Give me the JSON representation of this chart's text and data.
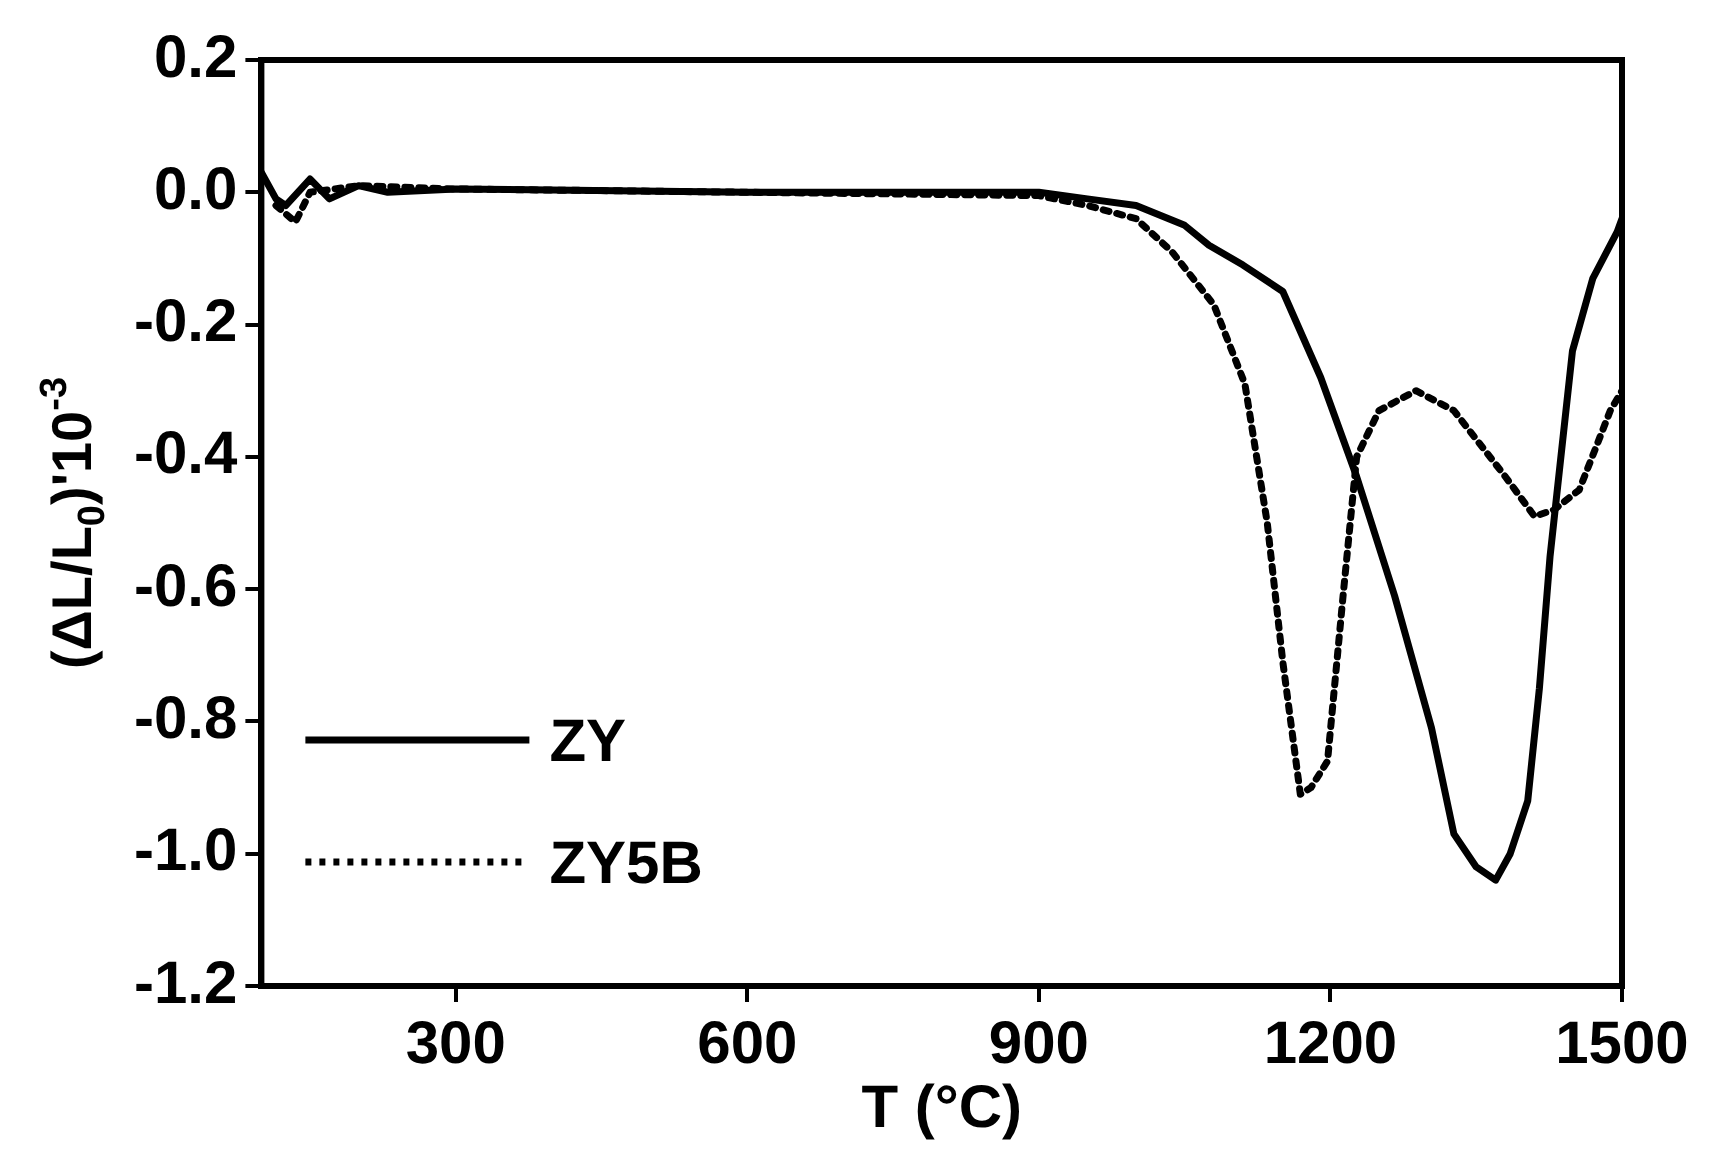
{
  "chart_data": {
    "type": "line",
    "xlabel": "T (°C)",
    "ylabel": "(ΔL/L$_{0}$)'10$^{-3}$",
    "xlim": [
      100,
      1500
    ],
    "xticks": [
      300,
      600,
      900,
      1200,
      1500
    ],
    "ylim": [
      -1.2,
      0.2
    ],
    "yticks": [
      0.2,
      {
        "value": 0,
        "label": "0.0"
      },
      -0.2,
      -0.4,
      -0.6,
      -0.8,
      {
        "value": -1,
        "label": "-1.0"
      },
      -1.2
    ],
    "grid": false,
    "legend": "bottom left",
    "marker": "none",
    "series": [
      {
        "name": "ZY",
        "color": "#000000",
        "line_style": "solid",
        "x": [
          100,
          115,
          125,
          150,
          170,
          200,
          230,
          300,
          600,
          900,
          950,
          1000,
          1050,
          1075,
          1110,
          1151,
          1190,
          1227,
          1266,
          1304,
          1327,
          1350,
          1370,
          1385,
          1403,
          1415,
          1426,
          1449,
          1470,
          1495,
          1500
        ],
        "values": [
          0.03,
          -0.01,
          -0.02,
          0.02,
          -0.01,
          0.01,
          0,
          0.005,
          0,
          0,
          -0.01,
          -0.02,
          -0.05,
          -0.08,
          -0.11,
          -0.15,
          -0.28,
          -0.43,
          -0.61,
          -0.81,
          -0.97,
          -1.02,
          -1.04,
          -1.0,
          -0.92,
          -0.75,
          -0.55,
          -0.24,
          -0.13,
          -0.06,
          -0.04
        ]
      },
      {
        "name": "ZY5B",
        "color": "#000000",
        "line_style": "dotted",
        "x": [
          115,
          135,
          150,
          200,
          300,
          600,
          900,
          950,
          1000,
          1037,
          1080,
          1112,
          1135,
          1151,
          1169,
          1180,
          1197,
          1213,
          1227,
          1250,
          1288,
          1327,
          1380,
          1410,
          1430,
          1456,
          1488,
          1500
        ],
        "values": [
          -0.02,
          -0.045,
          0,
          0.01,
          0.005,
          0,
          -0.005,
          -0.02,
          -0.04,
          -0.09,
          -0.17,
          -0.29,
          -0.5,
          -0.71,
          -0.91,
          -0.9,
          -0.86,
          -0.61,
          -0.4,
          -0.33,
          -0.3,
          -0.33,
          -0.43,
          -0.49,
          -0.48,
          -0.45,
          -0.33,
          -0.3
        ]
      }
    ]
  }
}
